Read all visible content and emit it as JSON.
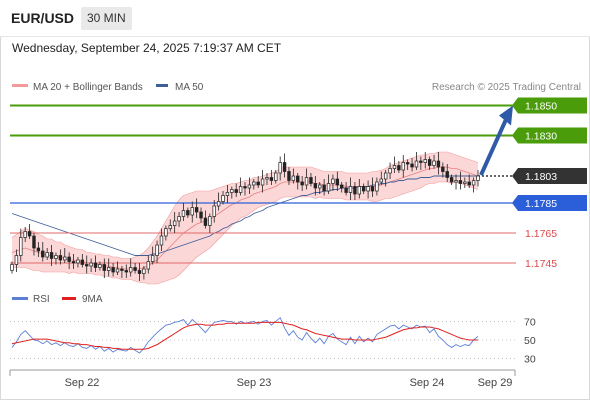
{
  "header": {
    "symbol": "EUR/USD",
    "timeframe": "30 MIN",
    "timestamp": "Wednesday, September 24, 2025 7:19:37 AM CET"
  },
  "legend": {
    "bollinger": "MA 20 + Bollinger Bands",
    "ma50": "MA 50",
    "credit": "Research © 2025 Trading Central",
    "rsi": "RSI",
    "ma9": "9MA"
  },
  "colors": {
    "resistance": "#4a9c0a",
    "support": "#2b5fd9",
    "support_minor": "#d94a4a",
    "current": "#333333",
    "bollinger_fill": "#fcd7d7",
    "bollinger_line": "#f29a9a",
    "ma50": "#3f5f9a",
    "rsi": "#5b7fd6",
    "rsi_ma": "#e02020",
    "arrow": "#2f5aa8"
  },
  "chart_data": [
    {
      "type": "candlestick",
      "x_ticks": [
        "Sep 22",
        "Sep 23",
        "Sep 24",
        "Sep 29"
      ],
      "y_range": [
        1.1735,
        1.1855
      ],
      "current_price": 1.1803,
      "levels": [
        {
          "value": 1.185,
          "label": "1.1850",
          "kind": "resistance"
        },
        {
          "value": 1.183,
          "label": "1.1830",
          "kind": "resistance"
        },
        {
          "value": 1.1803,
          "label": "1.1803",
          "kind": "current"
        },
        {
          "value": 1.1785,
          "label": "1.1785",
          "kind": "support"
        },
        {
          "value": 1.1765,
          "label": "1.1765",
          "kind": "support_minor"
        },
        {
          "value": 1.1745,
          "label": "1.1745",
          "kind": "support_minor"
        }
      ],
      "close": [
        1.1744,
        1.175,
        1.1762,
        1.1766,
        1.1763,
        1.1755,
        1.1753,
        1.1749,
        1.1752,
        1.1748,
        1.175,
        1.1747,
        1.1749,
        1.1746,
        1.1745,
        1.1747,
        1.1744,
        1.1743,
        1.1745,
        1.1742,
        1.1744,
        1.174,
        1.1742,
        1.1739,
        1.1741,
        1.174,
        1.1739,
        1.1742,
        1.174,
        1.1738,
        1.1741,
        1.1746,
        1.175,
        1.1757,
        1.1763,
        1.1768,
        1.177,
        1.1773,
        1.1776,
        1.178,
        1.1777,
        1.1782,
        1.1779,
        1.1775,
        1.177,
        1.1776,
        1.1783,
        1.1786,
        1.179,
        1.1792,
        1.1794,
        1.1792,
        1.1796,
        1.1795,
        1.1797,
        1.1799,
        1.1797,
        1.1801,
        1.1802,
        1.18,
        1.1805,
        1.1812,
        1.1806,
        1.18,
        1.1803,
        1.1799,
        1.1797,
        1.1802,
        1.1798,
        1.1795,
        1.1797,
        1.1793,
        1.1798,
        1.1801,
        1.1797,
        1.1795,
        1.1792,
        1.1796,
        1.1791,
        1.1796,
        1.1793,
        1.1796,
        1.1793,
        1.1799,
        1.1801,
        1.1805,
        1.1808,
        1.181,
        1.1807,
        1.1812,
        1.1811,
        1.1809,
        1.1813,
        1.1812,
        1.1814,
        1.181,
        1.1813,
        1.1809,
        1.1806,
        1.1802,
        1.1799,
        1.18,
        1.1798,
        1.1799,
        1.1797,
        1.18,
        1.1803
      ],
      "bollinger_mid": [
        1.1752,
        1.1753,
        1.1754,
        1.1755,
        1.1754,
        1.1753,
        1.1752,
        1.1751,
        1.175,
        1.175,
        1.1749,
        1.1749,
        1.1748,
        1.1747,
        1.1747,
        1.1746,
        1.1746,
        1.1745,
        1.1745,
        1.1744,
        1.1744,
        1.1743,
        1.1743,
        1.1742,
        1.1742,
        1.1741,
        1.1741,
        1.1741,
        1.1741,
        1.1741,
        1.1742,
        1.1743,
        1.1745,
        1.1747,
        1.175,
        1.1753,
        1.1756,
        1.1759,
        1.1762,
        1.1765,
        1.1767,
        1.1769,
        1.1771,
        1.1772,
        1.1773,
        1.1774,
        1.1776,
        1.1778,
        1.178,
        1.1782,
        1.1784,
        1.1785,
        1.1787,
        1.1788,
        1.1789,
        1.1791,
        1.1792,
        1.1793,
        1.1794,
        1.1795,
        1.1796,
        1.1798,
        1.1799,
        1.1799,
        1.1799,
        1.1799,
        1.1799,
        1.1799,
        1.1799,
        1.1798,
        1.1798,
        1.1797,
        1.1797,
        1.1797,
        1.1797,
        1.1797,
        1.1796,
        1.1796,
        1.1796,
        1.1796,
        1.1796,
        1.1796,
        1.1796,
        1.1796,
        1.1797,
        1.1798,
        1.1799,
        1.18,
        1.1801,
        1.1802,
        1.1803,
        1.1804,
        1.1805,
        1.1806,
        1.1807,
        1.1808,
        1.1808,
        1.1809,
        1.1809,
        1.1809,
        1.1808,
        1.1808,
        1.1807,
        1.1806,
        1.1805,
        1.1804,
        1.1803
      ],
      "bollinger_width": [
        0.001,
        0.0011,
        0.0012,
        0.0013,
        0.0013,
        0.0013,
        0.0012,
        0.0012,
        0.0011,
        0.0011,
        0.001,
        0.001,
        0.0009,
        0.0009,
        0.0008,
        0.0008,
        0.0008,
        0.0007,
        0.0007,
        0.0007,
        0.0007,
        0.0007,
        0.0007,
        0.0007,
        0.0007,
        0.0007,
        0.0007,
        0.0007,
        0.0008,
        0.0009,
        0.001,
        0.0012,
        0.0014,
        0.0016,
        0.0018,
        0.002,
        0.0022,
        0.0024,
        0.0025,
        0.0025,
        0.0024,
        0.0023,
        0.0022,
        0.0021,
        0.002,
        0.0019,
        0.0018,
        0.0017,
        0.0016,
        0.0015,
        0.0014,
        0.0013,
        0.0012,
        0.0012,
        0.0011,
        0.0011,
        0.001,
        0.001,
        0.001,
        0.001,
        0.001,
        0.001,
        0.001,
        0.001,
        0.001,
        0.001,
        0.001,
        0.001,
        0.001,
        0.001,
        0.0009,
        0.0009,
        0.0009,
        0.0009,
        0.0009,
        0.0009,
        0.0009,
        0.0009,
        0.0009,
        0.0009,
        0.0009,
        0.0009,
        0.001,
        0.001,
        0.001,
        0.001,
        0.0011,
        0.0011,
        0.0011,
        0.0011,
        0.0011,
        0.0011,
        0.0011,
        0.0011,
        0.001,
        0.001,
        0.001,
        0.001,
        0.001,
        0.001,
        0.001,
        0.0009,
        0.0009,
        0.0009,
        0.0009,
        0.0009,
        0.0009
      ],
      "ma50": [
        1.1778,
        1.1777,
        1.1776,
        1.1775,
        1.1774,
        1.1773,
        1.1772,
        1.1771,
        1.177,
        1.1769,
        1.1768,
        1.1767,
        1.1766,
        1.1765,
        1.1764,
        1.1763,
        1.1762,
        1.1761,
        1.176,
        1.1759,
        1.1758,
        1.1757,
        1.1756,
        1.1755,
        1.1754,
        1.1753,
        1.1752,
        1.1751,
        1.175,
        1.175,
        1.175,
        1.175,
        1.1751,
        1.1751,
        1.1752,
        1.1753,
        1.1754,
        1.1755,
        1.1756,
        1.1757,
        1.1758,
        1.1759,
        1.176,
        1.1761,
        1.1762,
        1.1763,
        1.1765,
        1.1766,
        1.1768,
        1.1769,
        1.1771,
        1.1772,
        1.1773,
        1.1775,
        1.1776,
        1.1778,
        1.1779,
        1.178,
        1.1782,
        1.1783,
        1.1784,
        1.1785,
        1.1786,
        1.1787,
        1.1788,
        1.1789,
        1.179,
        1.179,
        1.1791,
        1.1792,
        1.1792,
        1.1793,
        1.1793,
        1.1794,
        1.1794,
        1.1795,
        1.1795,
        1.1795,
        1.1795,
        1.1796,
        1.1796,
        1.1796,
        1.1797,
        1.1797,
        1.1798,
        1.1798,
        1.1799,
        1.1799,
        1.18,
        1.18,
        1.1801,
        1.1801,
        1.1801,
        1.1802,
        1.1802,
        1.1802,
        1.1803,
        1.1803,
        1.1803,
        1.1803,
        1.1803,
        1.1803,
        1.1803,
        1.1803,
        1.1803,
        1.1803,
        1.1803
      ]
    },
    {
      "type": "line",
      "name": "RSI",
      "y_ticks": [
        70,
        50,
        30
      ],
      "y_range": [
        22,
        78
      ],
      "rsi": [
        42,
        48,
        56,
        60,
        55,
        50,
        49,
        46,
        49,
        45,
        47,
        44,
        47,
        44,
        43,
        46,
        42,
        41,
        44,
        40,
        43,
        38,
        41,
        37,
        40,
        39,
        38,
        42,
        39,
        36,
        41,
        48,
        53,
        58,
        62,
        66,
        67,
        69,
        70,
        72,
        66,
        72,
        68,
        63,
        58,
        64,
        69,
        70,
        71,
        70,
        70,
        67,
        70,
        68,
        69,
        70,
        67,
        70,
        71,
        66,
        70,
        74,
        63,
        55,
        60,
        53,
        50,
        58,
        52,
        47,
        52,
        46,
        54,
        57,
        51,
        48,
        45,
        53,
        46,
        54,
        48,
        52,
        48,
        56,
        59,
        62,
        65,
        66,
        62,
        66,
        64,
        62,
        66,
        64,
        65,
        58,
        62,
        54,
        50,
        45,
        42,
        45,
        43,
        45,
        44,
        50,
        54
      ],
      "rsi_ma": [
        46,
        47,
        48,
        49,
        50,
        51,
        51,
        51,
        51,
        50,
        49,
        48,
        47,
        47,
        46,
        46,
        45,
        45,
        44,
        43,
        43,
        42,
        42,
        41,
        41,
        40,
        40,
        40,
        40,
        40,
        40,
        41,
        43,
        45,
        48,
        51,
        54,
        57,
        60,
        63,
        65,
        66,
        67,
        67,
        66,
        66,
        66,
        67,
        67,
        68,
        68,
        68,
        68,
        68,
        68,
        68,
        69,
        69,
        69,
        69,
        69,
        69,
        68,
        67,
        66,
        64,
        62,
        61,
        59,
        57,
        56,
        55,
        54,
        53,
        52,
        51,
        51,
        51,
        50,
        50,
        50,
        50,
        50,
        51,
        52,
        53,
        55,
        57,
        59,
        61,
        62,
        63,
        63,
        64,
        64,
        64,
        63,
        62,
        60,
        58,
        56,
        54,
        52,
        51,
        50,
        50,
        50
      ]
    }
  ],
  "axis": {
    "x_labels": [
      "Sep 22",
      "Sep 23",
      "Sep 24",
      "Sep 29"
    ]
  }
}
